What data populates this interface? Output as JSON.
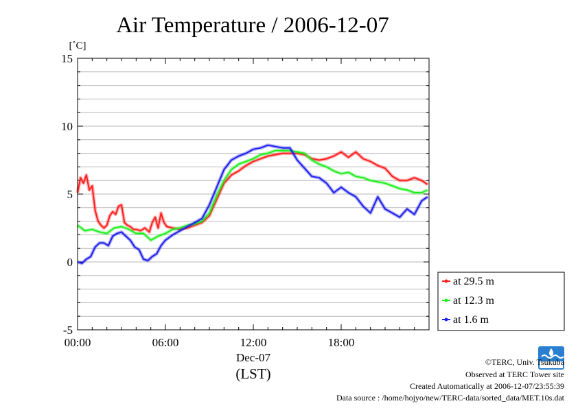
{
  "chart_data": {
    "type": "line",
    "title": "Air Temperature / 2006-12-07",
    "ylabel": "[˚C]",
    "xlabel": "(LST)",
    "x_date_label": "Dec-07",
    "x_unit": "hour",
    "xlim": [
      0,
      24
    ],
    "ylim": [
      -5,
      15
    ],
    "yticks": [
      -5,
      0,
      5,
      10,
      15
    ],
    "ytick_labels": [
      "-5",
      "0",
      "5",
      "10",
      "15"
    ],
    "xticks": [
      0,
      6,
      12,
      18
    ],
    "xtick_labels": [
      "00:00",
      "06:00",
      "12:00",
      "18:00"
    ],
    "grid": true,
    "legend_position": "bottom-right outside",
    "series": [
      {
        "name": "at 29.5 m",
        "color": "#ff2020",
        "x": [
          0,
          0.2,
          0.4,
          0.6,
          0.8,
          1.0,
          1.2,
          1.4,
          1.6,
          1.8,
          2.0,
          2.2,
          2.4,
          2.6,
          2.8,
          3.0,
          3.2,
          3.4,
          3.6,
          3.8,
          4.0,
          4.3,
          4.6,
          4.9,
          5.1,
          5.3,
          5.5,
          5.7,
          5.9,
          6.1,
          6.5,
          7.0,
          7.5,
          8.0,
          8.5,
          9.0,
          9.5,
          10.0,
          10.5,
          11.0,
          11.5,
          12.0,
          12.5,
          13.0,
          13.5,
          14.0,
          14.5,
          15.0,
          15.5,
          16.0,
          16.5,
          17.0,
          17.5,
          18.0,
          18.5,
          19.0,
          19.5,
          20.0,
          20.5,
          21.0,
          21.5,
          22.0,
          22.5,
          23.0,
          23.5,
          23.9
        ],
        "values": [
          5.1,
          6.2,
          5.8,
          6.4,
          5.3,
          5.6,
          3.8,
          3.0,
          2.7,
          2.5,
          2.7,
          3.4,
          3.7,
          3.5,
          4.1,
          4.2,
          2.9,
          2.7,
          2.6,
          2.4,
          2.4,
          2.3,
          2.5,
          2.2,
          2.9,
          3.3,
          2.5,
          3.6,
          2.9,
          2.6,
          2.5,
          2.4,
          2.5,
          2.7,
          2.9,
          3.4,
          4.6,
          5.8,
          6.4,
          6.7,
          7.1,
          7.4,
          7.6,
          7.8,
          7.9,
          8.0,
          8.0,
          8.0,
          7.9,
          7.6,
          7.5,
          7.6,
          7.8,
          8.1,
          7.7,
          8.1,
          7.6,
          7.4,
          7.1,
          6.9,
          6.3,
          6.0,
          6.0,
          6.2,
          6.0,
          5.7
        ]
      },
      {
        "name": "at 12.3 m",
        "color": "#20ee20",
        "x": [
          0,
          0.5,
          1.0,
          1.5,
          2.0,
          2.5,
          3.0,
          3.5,
          4.0,
          4.5,
          5.0,
          5.5,
          6.0,
          6.5,
          7.0,
          7.5,
          8.0,
          8.5,
          9.0,
          9.5,
          10.0,
          10.5,
          11.0,
          11.5,
          12.0,
          12.5,
          13.0,
          13.5,
          14.0,
          14.5,
          15.0,
          15.5,
          16.0,
          16.5,
          17.0,
          17.5,
          18.0,
          18.5,
          19.0,
          19.5,
          20.0,
          20.5,
          21.0,
          21.5,
          22.0,
          22.5,
          23.0,
          23.5,
          23.9
        ],
        "values": [
          2.7,
          2.3,
          2.4,
          2.2,
          2.1,
          2.5,
          2.6,
          2.4,
          2.1,
          2.1,
          1.6,
          1.9,
          2.1,
          2.4,
          2.5,
          2.7,
          2.8,
          3.0,
          3.6,
          4.9,
          6.0,
          6.8,
          7.2,
          7.4,
          7.6,
          7.9,
          8.0,
          8.2,
          8.2,
          8.2,
          8.1,
          8.0,
          7.5,
          7.2,
          7.0,
          6.7,
          6.5,
          6.6,
          6.3,
          6.2,
          6.0,
          5.9,
          5.8,
          5.6,
          5.4,
          5.3,
          5.1,
          5.1,
          5.3
        ]
      },
      {
        "name": "at 1.6 m",
        "color": "#2020ee",
        "x": [
          0,
          0.3,
          0.6,
          0.9,
          1.2,
          1.5,
          1.8,
          2.1,
          2.4,
          2.7,
          3.0,
          3.3,
          3.6,
          3.9,
          4.2,
          4.5,
          4.8,
          5.1,
          5.4,
          5.7,
          6.0,
          6.5,
          7.0,
          7.5,
          8.0,
          8.5,
          9.0,
          9.5,
          10.0,
          10.5,
          11.0,
          11.5,
          12.0,
          12.5,
          13.0,
          13.5,
          14.0,
          14.5,
          15.0,
          15.5,
          16.0,
          16.5,
          17.0,
          17.5,
          18.0,
          18.5,
          19.0,
          19.5,
          20.0,
          20.5,
          21.0,
          21.5,
          22.0,
          22.5,
          23.0,
          23.5,
          23.9
        ],
        "values": [
          0.0,
          -0.1,
          0.2,
          0.4,
          1.1,
          1.4,
          1.4,
          1.2,
          1.9,
          2.1,
          2.2,
          1.9,
          1.6,
          1.1,
          0.9,
          0.2,
          0.1,
          0.4,
          0.6,
          1.2,
          1.6,
          2.0,
          2.3,
          2.6,
          2.9,
          3.2,
          4.2,
          5.5,
          6.8,
          7.5,
          7.8,
          8.0,
          8.3,
          8.4,
          8.6,
          8.5,
          8.4,
          8.4,
          7.5,
          6.9,
          6.3,
          6.2,
          5.8,
          5.1,
          5.5,
          5.1,
          4.8,
          4.1,
          3.6,
          4.8,
          3.9,
          3.6,
          3.3,
          3.9,
          3.5,
          4.5,
          4.8
        ]
      }
    ]
  },
  "credits": {
    "copyright": "©TERC, Univ. Tsukuba",
    "observed": "Observed at TERC Tower site",
    "created": "Created Automatically at 2006-12-07/23:55:39",
    "source": "Data source : /home/hojyo/new/TERC-data/sorted_data/MET.10s.dat",
    "logo_text": "TERC"
  }
}
